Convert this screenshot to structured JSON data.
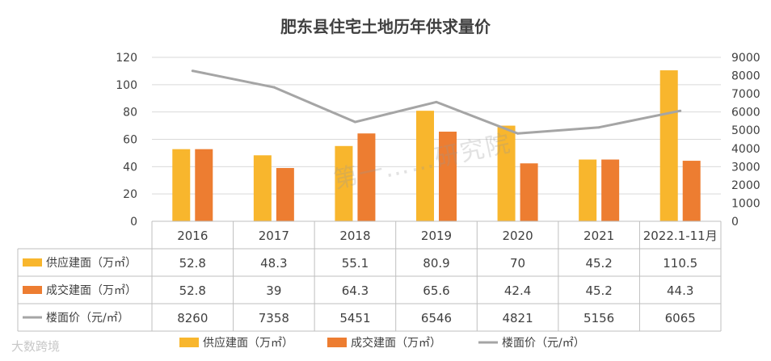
{
  "chart_data": {
    "type": "bar",
    "title": "肥东县住宅土地历年供求量价",
    "categories": [
      "2016",
      "2017",
      "2018",
      "2019",
      "2020",
      "2021",
      "2022.1-11月"
    ],
    "series": [
      {
        "name": "供应建面（万㎡）",
        "kind": "bar",
        "axis": "left",
        "color": "#F8B62D",
        "values": [
          52.8,
          48.3,
          55.1,
          80.9,
          70,
          45.2,
          110.5
        ],
        "labels": [
          "52.8",
          "48.3",
          "55.1",
          "80.9",
          "70",
          "45.2",
          "110.5"
        ]
      },
      {
        "name": "成交建面（万㎡）",
        "kind": "bar",
        "axis": "left",
        "color": "#ED7D31",
        "values": [
          52.8,
          39,
          64.3,
          65.6,
          42.4,
          45.2,
          44.3
        ],
        "labels": [
          "52.8",
          "39",
          "64.3",
          "65.6",
          "42.4",
          "45.2",
          "44.3"
        ]
      },
      {
        "name": "楼面价（元/㎡）",
        "kind": "line",
        "axis": "right",
        "color": "#A5A5A5",
        "values": [
          8260,
          7358,
          5451,
          6546,
          4821,
          5156,
          6065
        ],
        "labels": [
          "8260",
          "7358",
          "5451",
          "6546",
          "4821",
          "5156",
          "6065"
        ]
      }
    ],
    "y_left": {
      "min": 0,
      "max": 120,
      "ticks": [
        "0",
        "20",
        "40",
        "60",
        "80",
        "100",
        "120"
      ]
    },
    "y_right": {
      "min": 0,
      "max": 9000,
      "ticks": [
        "0",
        "1000",
        "2000",
        "3000",
        "4000",
        "5000",
        "6000",
        "7000",
        "8000",
        "9000"
      ]
    },
    "grid": true,
    "legend": "bottom",
    "data_table": true
  },
  "watermark": "第一……研究院",
  "logo": "大数跨境"
}
